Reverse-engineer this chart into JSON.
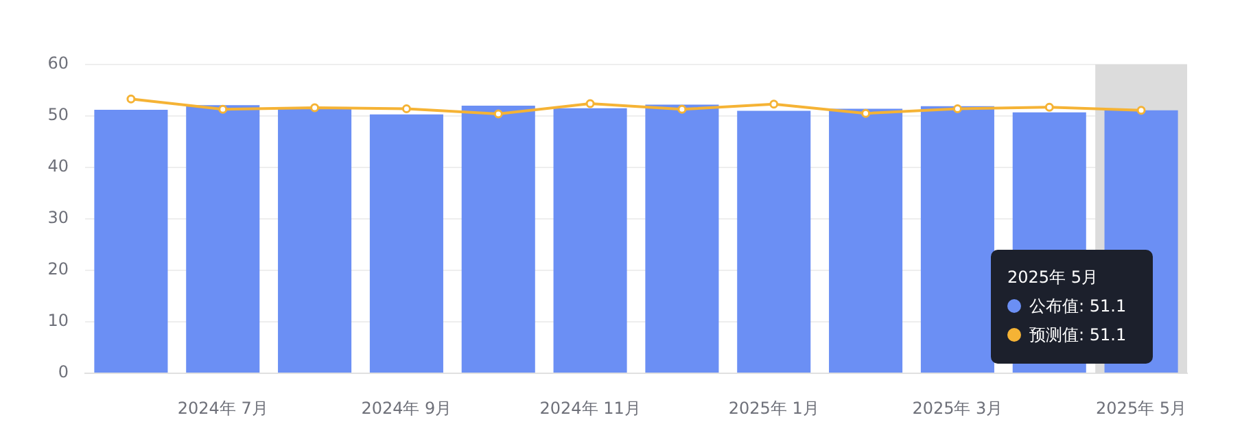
{
  "chart_data": {
    "type": "bar",
    "categories": [
      null,
      "2024年 7月",
      null,
      "2024年 9月",
      null,
      "2024年 11月",
      null,
      "2025年 1月",
      null,
      "2025年 3月",
      null,
      "2025年 5月"
    ],
    "series": [
      {
        "color": "#6b8ff4",
        "values": [
          51.2,
          52.1,
          51.6,
          50.3,
          52.0,
          51.5,
          52.2,
          51.0,
          51.4,
          51.9,
          50.7,
          51.1
        ]
      },
      {
        "type": "line",
        "color": "#f5b335",
        "values": [
          53.3,
          51.3,
          51.6,
          51.4,
          50.4,
          52.4,
          51.3,
          52.3,
          50.5,
          51.4,
          51.7,
          51.1
        ]
      }
    ],
    "ylim": [
      0,
      60
    ],
    "yticks": [
      0,
      10,
      20,
      30,
      40,
      50,
      60
    ],
    "grid": "y",
    "marker": "circle",
    "annotations": [
      "公布值: 51.1",
      "预测值: 51.1"
    ],
    "bands": [
      {
        "axis": "x",
        "from": "2025年 5月",
        "to": "2025年 5月",
        "color": "#dcdcdc"
      }
    ]
  }
}
